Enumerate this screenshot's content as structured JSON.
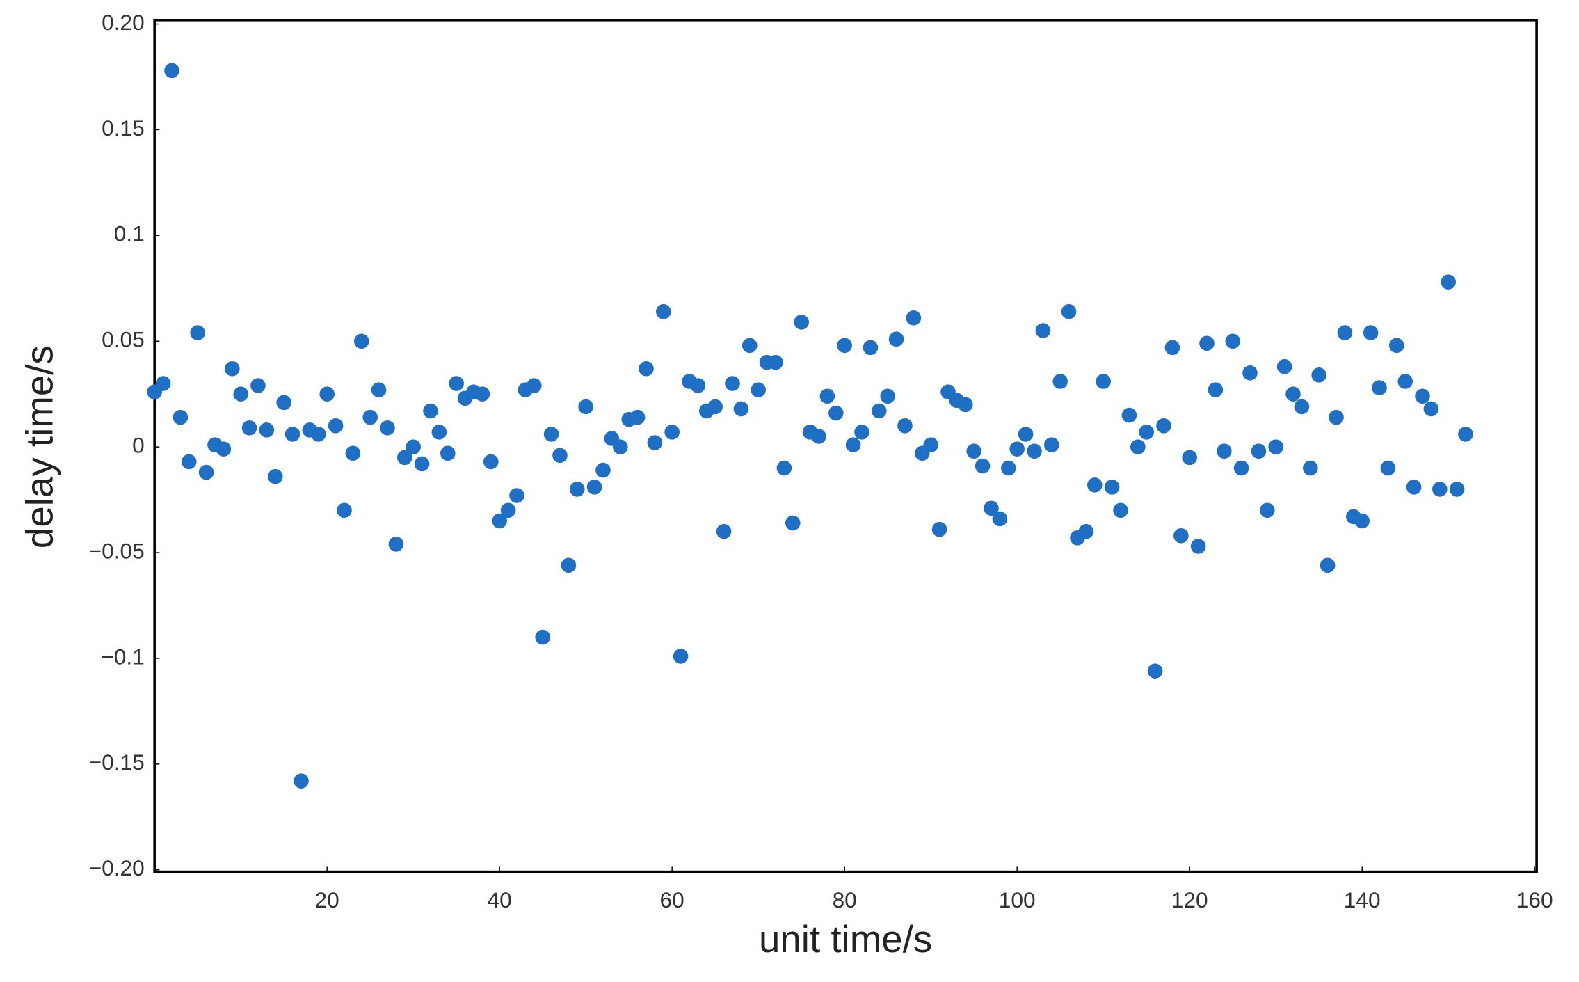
{
  "chart_data": {
    "type": "scatter",
    "x_label": "unit time/s",
    "y_label": "delay time/s",
    "color": "#1f6fc5",
    "xlim": [
      0,
      160
    ],
    "ylim": [
      -0.2,
      0.2
    ],
    "xticks": [
      20,
      40,
      60,
      80,
      100,
      120,
      140,
      160
    ],
    "yticks": [
      {
        "value": -0.2,
        "label": "−0.20"
      },
      {
        "value": -0.15,
        "label": "−0.15"
      },
      {
        "value": -0.1,
        "label": "−0.1"
      },
      {
        "value": -0.05,
        "label": "−0.05"
      },
      0,
      0.05,
      0.1,
      0.15,
      {
        "value": 0.2,
        "label": "0.20"
      }
    ],
    "x": [
      0,
      1,
      2,
      3,
      4,
      5,
      6,
      7,
      8,
      9,
      10,
      11,
      12,
      13,
      14,
      15,
      16,
      17,
      18,
      19,
      20,
      21,
      22,
      23,
      24,
      25,
      26,
      27,
      28,
      29,
      30,
      31,
      32,
      33,
      34,
      35,
      36,
      37,
      38,
      39,
      40,
      41,
      42,
      43,
      44,
      45,
      46,
      47,
      48,
      49,
      50,
      51,
      52,
      53,
      54,
      55,
      56,
      57,
      58,
      59,
      60,
      61,
      62,
      63,
      64,
      65,
      66,
      67,
      68,
      69,
      70,
      71,
      72,
      73,
      74,
      75,
      76,
      77,
      78,
      79,
      80,
      81,
      82,
      83,
      84,
      85,
      86,
      87,
      88,
      89,
      90,
      91,
      92,
      93,
      94,
      95,
      96,
      97,
      98,
      99,
      100,
      101,
      102,
      103,
      104,
      105,
      106,
      107,
      108,
      109,
      110,
      111,
      112,
      113,
      114,
      115,
      116,
      117,
      118,
      119,
      120,
      121,
      122,
      123,
      124,
      125,
      126,
      127,
      128,
      129,
      130,
      131,
      132,
      133,
      134,
      135,
      136,
      137,
      138,
      139,
      140,
      141,
      142,
      143,
      144,
      145,
      146,
      147,
      148,
      149,
      150,
      151,
      152
    ],
    "values": [
      0.026,
      0.03,
      0.178,
      0.014,
      -0.007,
      0.054,
      -0.012,
      0.001,
      -0.001,
      0.037,
      0.025,
      0.009,
      0.029,
      0.008,
      -0.014,
      0.021,
      0.006,
      -0.158,
      0.008,
      0.006,
      0.025,
      0.01,
      -0.03,
      -0.003,
      0.05,
      0.014,
      0.027,
      0.009,
      -0.046,
      -0.005,
      0.0,
      -0.008,
      0.017,
      0.007,
      -0.003,
      0.03,
      0.023,
      0.026,
      0.025,
      -0.007,
      -0.035,
      -0.03,
      -0.023,
      0.027,
      0.029,
      -0.09,
      0.006,
      -0.004,
      -0.056,
      -0.02,
      0.019,
      -0.019,
      -0.011,
      0.004,
      0.0,
      0.013,
      0.014,
      0.037,
      0.002,
      0.064,
      0.007,
      -0.099,
      0.031,
      0.029,
      0.017,
      0.019,
      -0.04,
      0.03,
      0.018,
      0.048,
      0.027,
      0.04,
      0.04,
      -0.01,
      -0.036,
      0.059,
      0.007,
      0.005,
      0.024,
      0.016,
      0.048,
      0.001,
      0.007,
      0.047,
      0.017,
      0.024,
      0.051,
      0.01,
      0.061,
      -0.003,
      0.001,
      -0.039,
      0.026,
      0.022,
      0.02,
      -0.002,
      -0.009,
      -0.029,
      -0.034,
      -0.01,
      -0.001,
      0.006,
      -0.002,
      0.055,
      0.001,
      0.031,
      0.064,
      -0.043,
      -0.04,
      -0.018,
      0.031,
      -0.019,
      -0.03,
      0.015,
      0.0,
      0.007,
      -0.106,
      0.01,
      0.047,
      -0.042,
      -0.005,
      -0.047,
      0.049,
      0.027,
      -0.002,
      0.05,
      -0.01,
      0.035,
      -0.002,
      -0.03,
      0.0,
      0.038,
      0.025,
      0.019,
      -0.01,
      0.034,
      -0.056,
      0.014,
      0.054,
      -0.033,
      -0.035,
      0.054,
      0.028,
      -0.01,
      0.048,
      0.031,
      -0.019,
      0.024,
      0.018,
      -0.02,
      0.078,
      -0.02,
      0.006
    ]
  }
}
